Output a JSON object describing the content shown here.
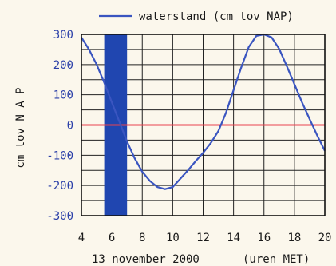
{
  "chart_data": {
    "type": "line",
    "title": "",
    "ylabel": "cm tov N A P",
    "xlabel_date": "13 november 2000",
    "xlabel_unit": "(uren MET)",
    "legend_label": "waterstand (cm tov NAP)",
    "ylim": [
      -300,
      300
    ],
    "xlim": [
      4,
      20
    ],
    "yticks": [
      "300",
      "200",
      "100",
      "0",
      "-100",
      "-200",
      "-300"
    ],
    "ytick_values": [
      300,
      200,
      100,
      0,
      -100,
      -200,
      -300
    ],
    "xticks": [
      "4",
      "6",
      "8",
      "10",
      "12",
      "14",
      "16",
      "18",
      "20"
    ],
    "xtick_values": [
      4,
      6,
      8,
      10,
      12,
      14,
      16,
      18,
      20
    ],
    "highlight_band": {
      "from": 5.5,
      "to": 7.0,
      "color": "#2046b0"
    },
    "zero_line_color": "#e8434f",
    "series": [
      {
        "name": "waterstand (cm tov NAP)",
        "color": "#3a55c0",
        "x": [
          4,
          4.5,
          5,
          5.5,
          6,
          6.5,
          7,
          7.5,
          8,
          8.5,
          9,
          9.5,
          10,
          10.5,
          11,
          11.5,
          12,
          12.5,
          13,
          13.5,
          14,
          14.5,
          15,
          15.5,
          16,
          16.5,
          17,
          17.5,
          18,
          18.5,
          19,
          19.5,
          20
        ],
        "y": [
          290,
          250,
          200,
          140,
          75,
          10,
          -55,
          -110,
          -155,
          -185,
          -205,
          -212,
          -205,
          -178,
          -150,
          -120,
          -92,
          -60,
          -20,
          40,
          115,
          190,
          258,
          295,
          300,
          290,
          252,
          195,
          135,
          75,
          20,
          -35,
          -85
        ]
      }
    ]
  }
}
